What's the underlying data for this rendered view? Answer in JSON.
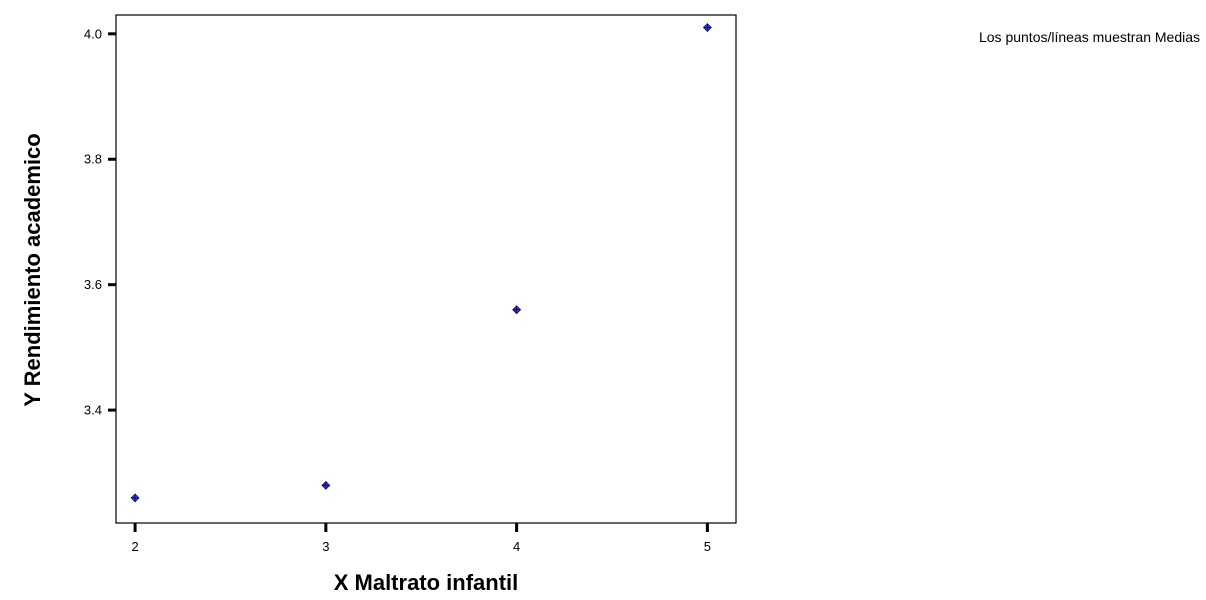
{
  "chart_data": {
    "type": "scatter",
    "xlabel": "X Maltrato infantil",
    "ylabel": "Y Rendimiento  academico",
    "note": "Los puntos/líneas muestran Medias",
    "x_ticks": [
      2,
      3,
      4,
      5
    ],
    "y_ticks": [
      3.4,
      3.6,
      3.8,
      4.0
    ],
    "y_tick_labels": [
      "3.4",
      "3.6",
      "3.8",
      "4.0"
    ],
    "xlim": [
      1.9,
      5.15
    ],
    "ylim": [
      3.22,
      4.03
    ],
    "grid": false,
    "marker_color": "#3333ff",
    "points": [
      {
        "x": 2,
        "y": 3.26
      },
      {
        "x": 3,
        "y": 3.28
      },
      {
        "x": 4,
        "y": 3.56
      },
      {
        "x": 5,
        "y": 4.01
      }
    ]
  }
}
